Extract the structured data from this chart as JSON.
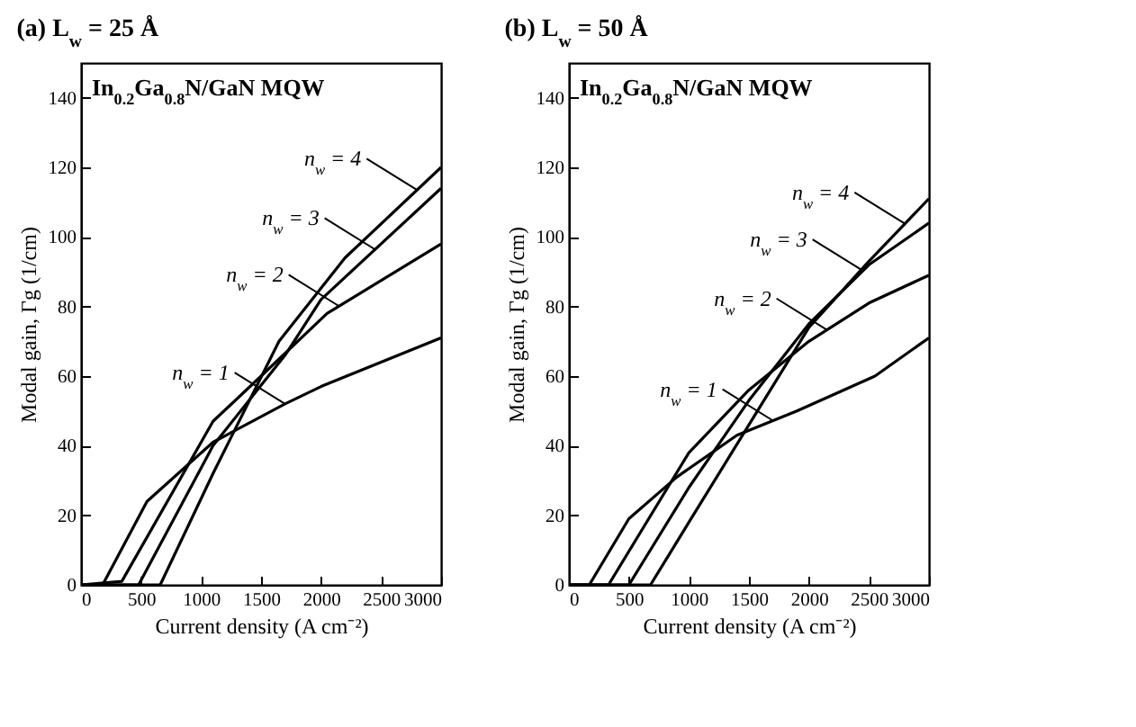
{
  "chart_data": [
    {
      "type": "line",
      "title": "(a)  L$_{w}$ = 25 Å",
      "xlabel": "Current density (A cm⁻²)",
      "ylabel": "Modal gain, Γg  (1/cm)",
      "annotations": [
        "In$_{0.2}$Ga$_{0.8}$N/GaN MQW"
      ],
      "xlim": [
        0,
        3000
      ],
      "ylim": [
        0,
        150
      ],
      "xticks": [
        0,
        500,
        1000,
        1500,
        2000,
        2500,
        3000
      ],
      "yticks": [
        0,
        20,
        40,
        60,
        80,
        100,
        120,
        140
      ],
      "grid": false,
      "legend": "right",
      "marker": "none",
      "line_style": "solid",
      "series": [
        {
          "name": "n$_{w}$ = 1",
          "color": "#000000",
          "x": [
            0,
            180,
            550,
            1100,
            1700,
            2000,
            3000
          ],
          "values": [
            0,
            0,
            24,
            41,
            52,
            57,
            71
          ]
        },
        {
          "name": "n$_{w}$ = 2",
          "color": "#000000",
          "x": [
            0,
            340,
            1100,
            1500,
            2050,
            3000
          ],
          "values": [
            0,
            1,
            47,
            60,
            78,
            98
          ]
        },
        {
          "name": "n$_{w}$ = 3",
          "color": "#000000",
          "x": [
            0,
            480,
            1100,
            1700,
            2000,
            3000
          ],
          "values": [
            0,
            0,
            40,
            66,
            82,
            114
          ]
        },
        {
          "name": "n$_{w}$ = 4",
          "color": "#000000",
          "x": [
            0,
            660,
            1100,
            1650,
            2200,
            3000
          ],
          "values": [
            0,
            0,
            32,
            70,
            94,
            120
          ]
        }
      ]
    },
    {
      "type": "line",
      "title": "(b)  L$_{w}$ = 50 Å",
      "xlabel": "Current density (A cm⁻²)",
      "ylabel": "Modal gain, Γg  (1/cm)",
      "annotations": [
        "In$_{0.2}$Ga$_{0.8}$N/GaN MQW"
      ],
      "xlim": [
        0,
        3000
      ],
      "ylim": [
        0,
        150
      ],
      "xticks": [
        0,
        500,
        1000,
        1500,
        2000,
        2500,
        3000
      ],
      "yticks": [
        0,
        20,
        40,
        60,
        80,
        100,
        120,
        140
      ],
      "grid": false,
      "legend": "right",
      "marker": "none",
      "line_style": "solid",
      "series": [
        {
          "name": "n$_{w}$ = 1",
          "color": "#000000",
          "x": [
            0,
            170,
            500,
            900,
            1400,
            1900,
            2550,
            3000
          ],
          "values": [
            0,
            0,
            19,
            31,
            43,
            50,
            60,
            71
          ]
        },
        {
          "name": "n$_{w}$ = 2",
          "color": "#000000",
          "x": [
            0,
            330,
            1000,
            1500,
            2000,
            2500,
            3000
          ],
          "values": [
            0,
            0,
            38,
            56,
            70,
            81,
            89
          ]
        },
        {
          "name": "n$_{w}$ = 3",
          "color": "#000000",
          "x": [
            0,
            500,
            1000,
            1500,
            2000,
            2500,
            3000
          ],
          "values": [
            0,
            0,
            28,
            53,
            75,
            92,
            104
          ]
        },
        {
          "name": "n$_{w}$ = 4",
          "color": "#000000",
          "x": [
            0,
            680,
            1000,
            1500,
            2000,
            2500,
            3000
          ],
          "values": [
            0,
            0,
            18,
            46,
            74,
            93,
            111
          ]
        }
      ]
    }
  ]
}
